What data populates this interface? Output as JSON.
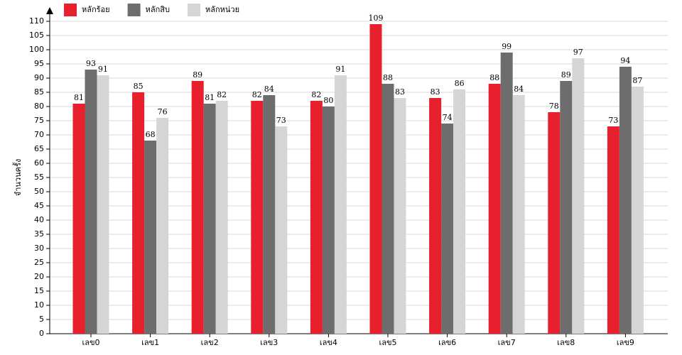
{
  "chart_data": {
    "type": "bar",
    "y_label": "จำนวนครั้ง",
    "categories": [
      "เลข0",
      "เลข1",
      "เลข2",
      "เลข3",
      "เลข4",
      "เลข5",
      "เลข6",
      "เลข7",
      "เลข8",
      "เลข9"
    ],
    "series": [
      {
        "name": "หลักร้อย",
        "color": "#e8202e",
        "values": [
          81,
          85,
          89,
          82,
          82,
          109,
          83,
          88,
          78,
          73
        ]
      },
      {
        "name": "หลักสิบ",
        "color": "#6d6d6d",
        "values": [
          93,
          68,
          81,
          84,
          80,
          88,
          74,
          99,
          89,
          94
        ]
      },
      {
        "name": "หลักหน่วย",
        "color": "#d5d5d5",
        "values": [
          91,
          76,
          82,
          73,
          91,
          83,
          86,
          84,
          97,
          87
        ]
      }
    ],
    "ylim": [
      0,
      110
    ],
    "yticks": [
      0,
      5,
      10,
      15,
      20,
      25,
      30,
      35,
      40,
      45,
      50,
      55,
      60,
      65,
      70,
      75,
      80,
      85,
      90,
      95,
      100,
      105,
      110
    ],
    "grid": true
  }
}
